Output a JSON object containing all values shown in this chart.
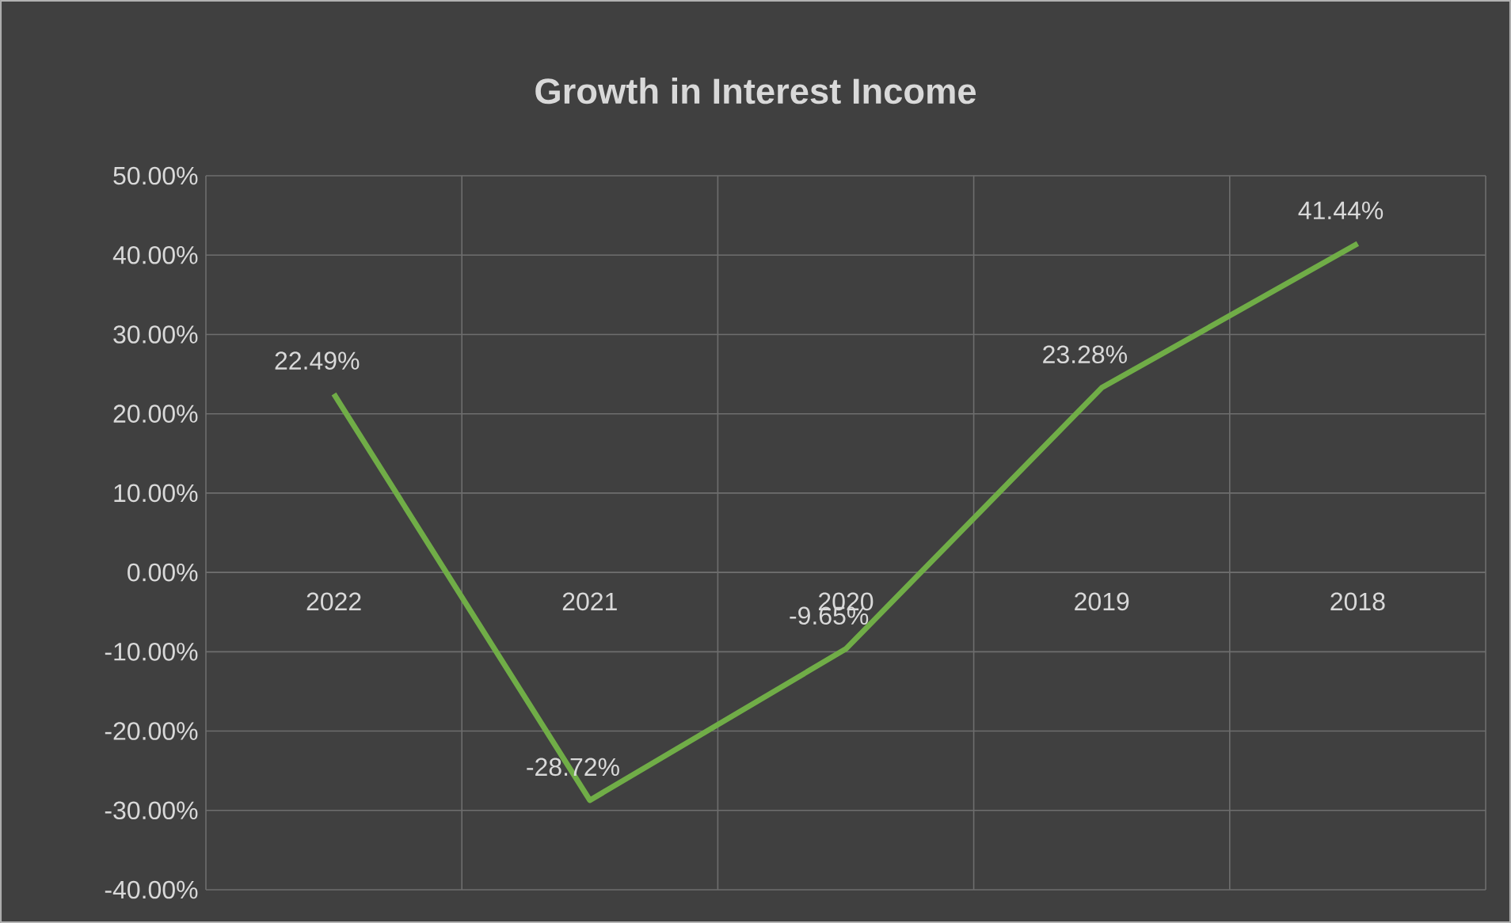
{
  "chart_data": {
    "type": "line",
    "title": "Growth in Interest Income",
    "categories": [
      "2022",
      "2021",
      "2020",
      "2019",
      "2018"
    ],
    "values": [
      22.49,
      -28.72,
      -9.65,
      23.28,
      41.44
    ],
    "value_labels": [
      "22.49%",
      "-28.72%",
      "-9.65%",
      "23.28%",
      "41.44%"
    ],
    "color": "#70ad47",
    "ylim": [
      -40,
      50
    ],
    "yticks": [
      {
        "value": -40,
        "label": "-40.00%"
      },
      {
        "value": -30,
        "label": "-30.00%"
      },
      {
        "value": -20,
        "label": "-20.00%"
      },
      {
        "value": -10,
        "label": "-10.00%"
      },
      {
        "value": 0,
        "label": "0.00%"
      },
      {
        "value": 10,
        "label": "10.00%"
      },
      {
        "value": 20,
        "label": "20.00%"
      },
      {
        "value": 30,
        "label": "30.00%"
      },
      {
        "value": 40,
        "label": "40.00%"
      },
      {
        "value": 50,
        "label": "50.00%"
      }
    ],
    "grid": true,
    "marker": "none",
    "line_style": "solid"
  }
}
